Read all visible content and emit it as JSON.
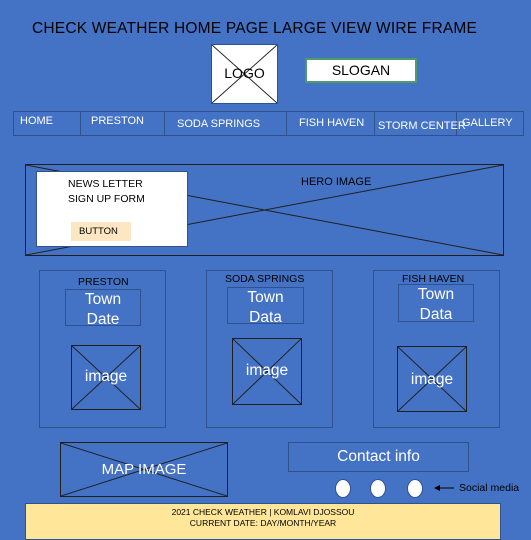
{
  "page": {
    "title": "CHECK WEATHER HOME PAGE LARGE VIEW WIRE FRAME"
  },
  "header": {
    "logo_label": "LOGO",
    "slogan_label": "SLOGAN"
  },
  "nav": {
    "items": [
      {
        "label": "HOME"
      },
      {
        "label": "PRESTON"
      },
      {
        "label": "SODA SPRINGS"
      },
      {
        "label": "FISH HAVEN"
      },
      {
        "label": "STORM CENTER"
      },
      {
        "label": "GALLERY"
      }
    ]
  },
  "hero": {
    "label": "HERO IMAGE",
    "newsletter": {
      "line1": "NEWS LETTER",
      "line2": "SIGN UP FORM",
      "button": "BUTTON"
    }
  },
  "towns": [
    {
      "name": "PRESTON",
      "line1": "Town",
      "line2": "Date",
      "image": "image"
    },
    {
      "name": "SODA SPRINGS",
      "line1": "Town",
      "line2": "Data",
      "image": "image"
    },
    {
      "name": "FISH HAVEN",
      "line1": "Town",
      "line2": "Data",
      "image": "image"
    }
  ],
  "map": {
    "label": "MAP IMAGE"
  },
  "contact": {
    "label": "Contact info"
  },
  "social": {
    "label": "Social media",
    "icons": [
      "social-icon-1",
      "social-icon-2",
      "social-icon-3"
    ]
  },
  "footer": {
    "line1": "2021 CHECK WEATHER | KOMLAVI DJOSSOU",
    "line2": "CURRENT DATE: DAY/MONTH/YEAR"
  },
  "colors": {
    "background": "#4472c4",
    "footer": "#ffe699",
    "button": "#fde7c2",
    "slogan_border": "#4f9a6a"
  }
}
